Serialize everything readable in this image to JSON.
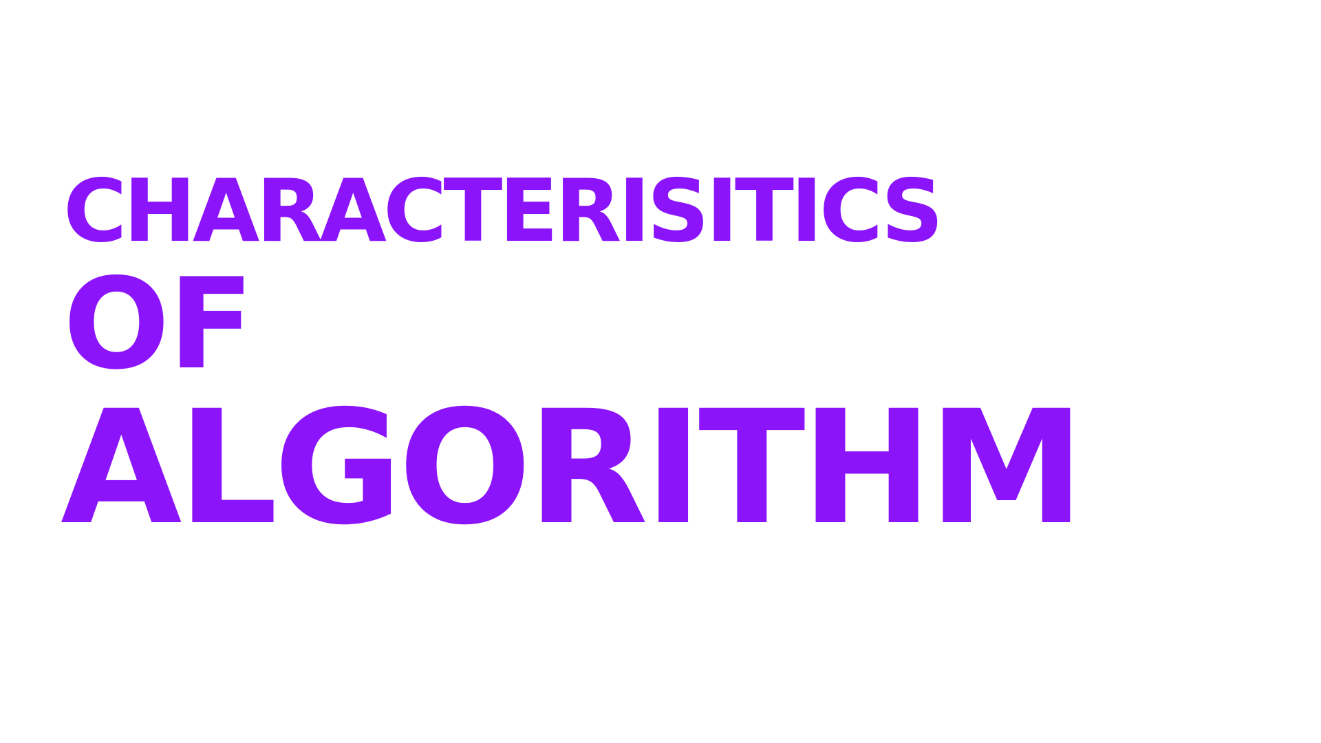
{
  "title": {
    "line1": "CHARACTERISITICS",
    "line2": "OF",
    "line3": "ALGORITHM"
  },
  "colors": {
    "text": "#8b14fb",
    "background": "#ffffff"
  }
}
